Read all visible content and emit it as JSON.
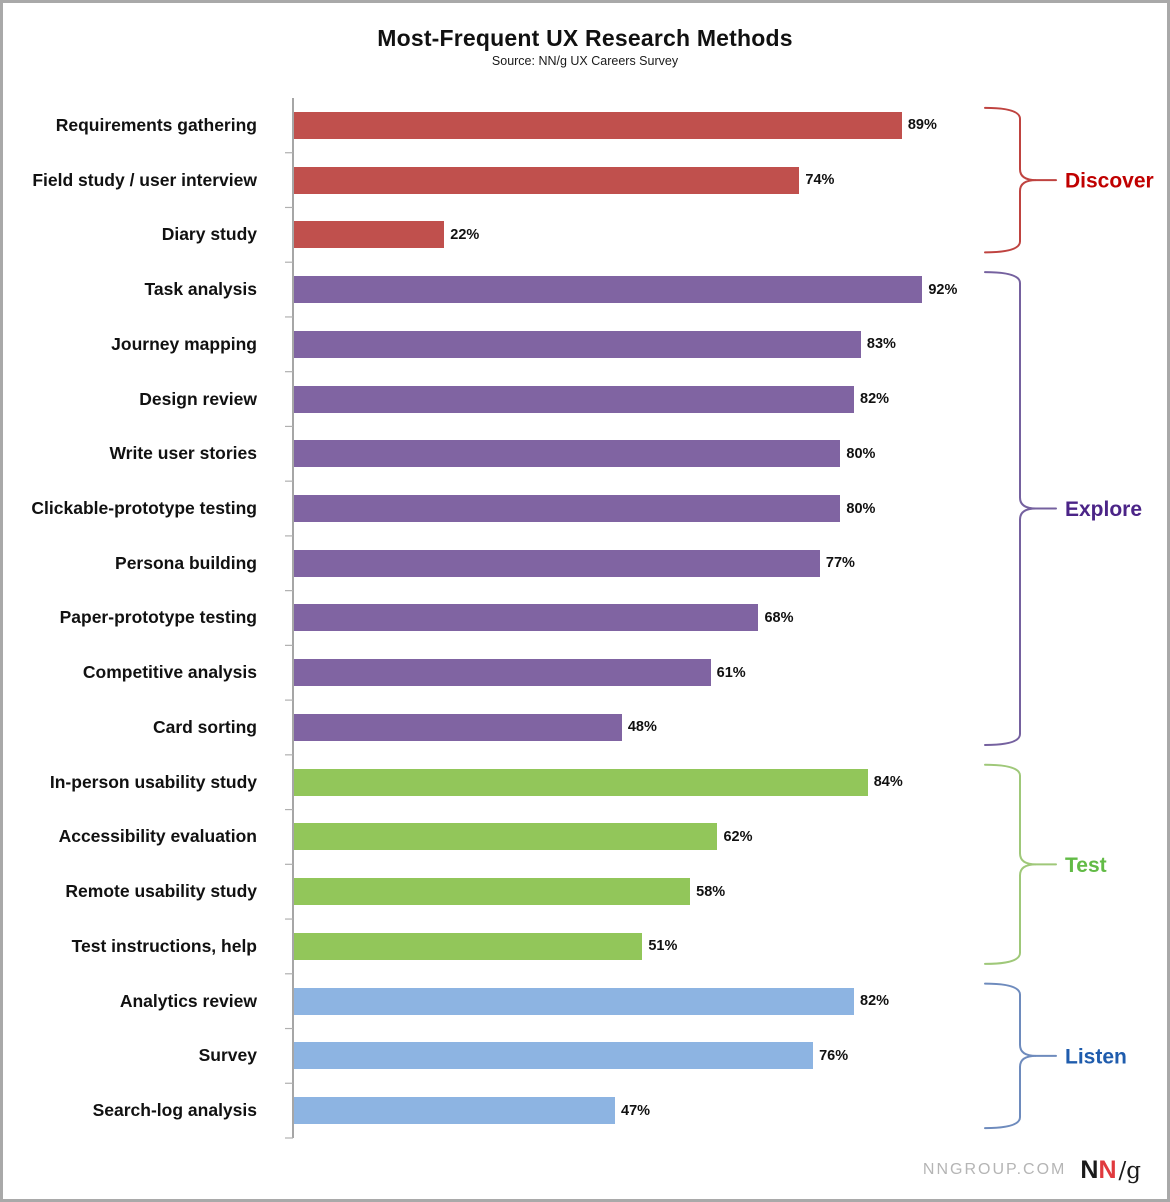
{
  "title": "Most-Frequent UX Research Methods",
  "subtitle": "Source: NN/g UX Careers Survey",
  "footer": {
    "site": "NNGROUP.COM",
    "logo_n1": "N",
    "logo_n2": "N",
    "logo_g": "/g"
  },
  "chart_data": {
    "type": "bar",
    "orientation": "horizontal",
    "title": "Most-Frequent UX Research Methods",
    "subtitle": "Source: NN/g UX Careers Survey",
    "unit": "%",
    "xlim": [
      0,
      100
    ],
    "grid": false,
    "value_labels": true,
    "groups": [
      {
        "name": "Discover",
        "bar_color": "#c0504d",
        "label_color": "#c00000",
        "brace_color": "#bf4340"
      },
      {
        "name": "Explore",
        "bar_color": "#8064a2",
        "label_color": "#4b2487",
        "brace_color": "#75619f"
      },
      {
        "name": "Test",
        "bar_color": "#92c65a",
        "label_color": "#62bb46",
        "brace_color": "#9fc879"
      },
      {
        "name": "Listen",
        "bar_color": "#8db4e2",
        "label_color": "#1f5cad",
        "brace_color": "#6e8bbd"
      }
    ],
    "items": [
      {
        "label": "Requirements gathering",
        "value": 89,
        "group": "Discover"
      },
      {
        "label": "Field study / user interview",
        "value": 74,
        "group": "Discover"
      },
      {
        "label": "Diary study",
        "value": 22,
        "group": "Discover"
      },
      {
        "label": "Task analysis",
        "value": 92,
        "group": "Explore"
      },
      {
        "label": "Journey mapping",
        "value": 83,
        "group": "Explore"
      },
      {
        "label": "Design review",
        "value": 82,
        "group": "Explore"
      },
      {
        "label": "Write user stories",
        "value": 80,
        "group": "Explore"
      },
      {
        "label": "Clickable-prototype testing",
        "value": 80,
        "group": "Explore"
      },
      {
        "label": "Persona building",
        "value": 77,
        "group": "Explore"
      },
      {
        "label": "Paper-prototype testing",
        "value": 68,
        "group": "Explore"
      },
      {
        "label": "Competitive analysis",
        "value": 61,
        "group": "Explore"
      },
      {
        "label": "Card sorting",
        "value": 48,
        "group": "Explore"
      },
      {
        "label": "In-person usability study",
        "value": 84,
        "group": "Test"
      },
      {
        "label": "Accessibility evaluation",
        "value": 62,
        "group": "Test"
      },
      {
        "label": "Remote usability study",
        "value": 58,
        "group": "Test"
      },
      {
        "label": "Test instructions, help",
        "value": 51,
        "group": "Test"
      },
      {
        "label": "Analytics review",
        "value": 82,
        "group": "Listen"
      },
      {
        "label": "Survey",
        "value": 76,
        "group": "Listen"
      },
      {
        "label": "Search-log analysis",
        "value": 47,
        "group": "Listen"
      }
    ]
  }
}
